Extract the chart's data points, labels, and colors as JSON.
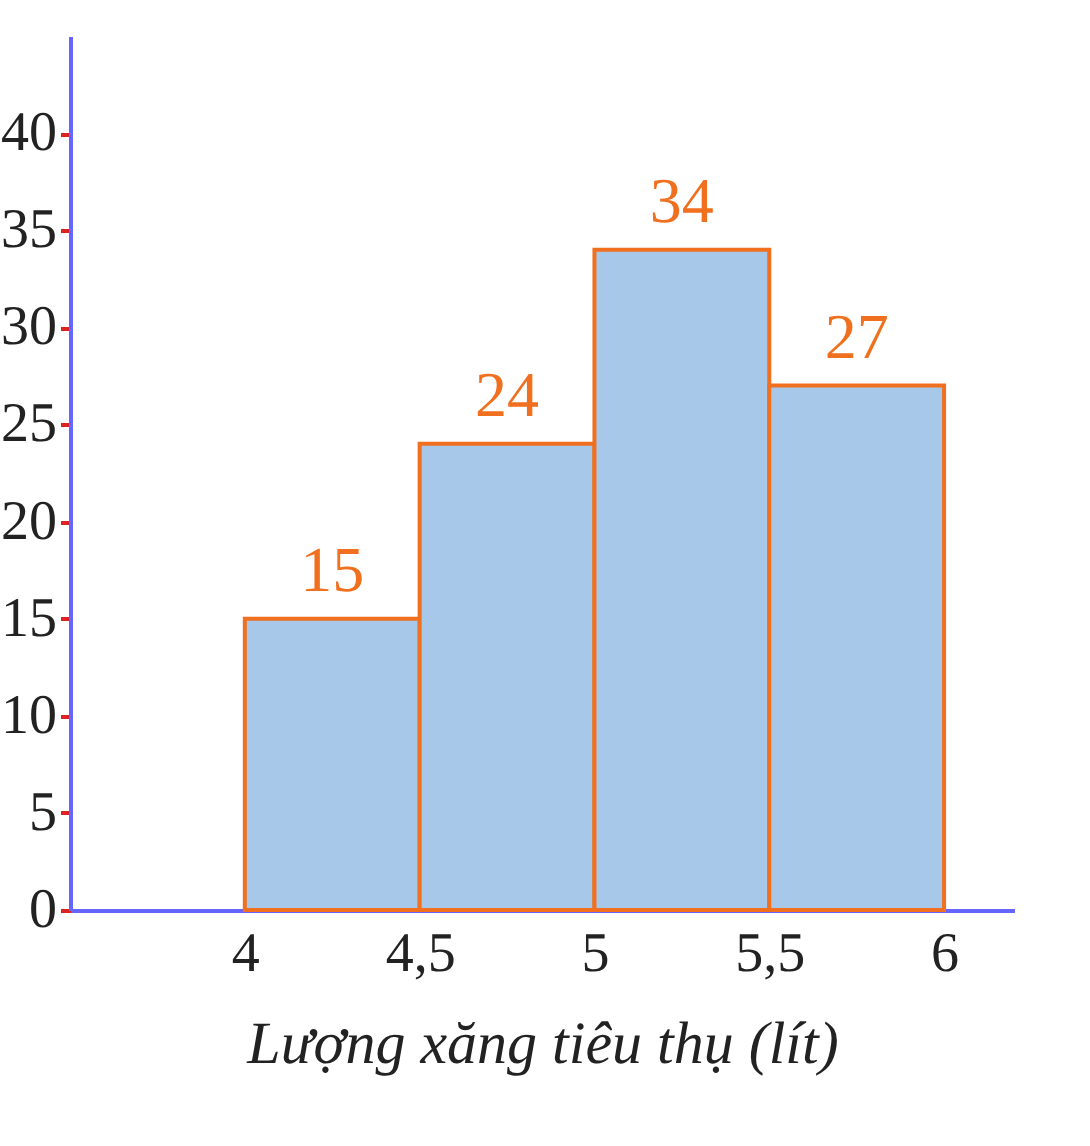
{
  "chart_data": {
    "type": "histogram",
    "xlabel": "Lượng xăng tiêu thụ (lít)",
    "bins": [
      4,
      4.5,
      5,
      5.5,
      6
    ],
    "values": [
      15,
      24,
      34,
      27
    ],
    "color": "#a7c8e8",
    "data_labels": true,
    "xlim": [
      3.5,
      6.2
    ],
    "xticks": [
      4,
      {
        "value": 4.5,
        "label": "4,5"
      },
      5,
      {
        "value": 5.5,
        "label": "5,5"
      },
      6
    ],
    "ylim": [
      0,
      45
    ],
    "yticks": [
      0,
      5,
      10,
      15,
      20,
      25,
      30,
      35,
      40
    ],
    "grid": false
  }
}
